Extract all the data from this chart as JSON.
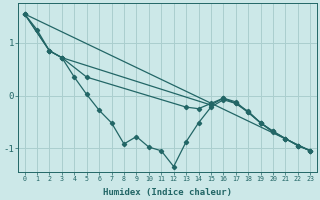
{
  "xlabel": "Humidex (Indice chaleur)",
  "bg_color": "#cce8e8",
  "line_color": "#226666",
  "grid_color": "#aacece",
  "xlim": [
    -0.5,
    23.5
  ],
  "ylim": [
    -1.45,
    1.75
  ],
  "yticks": [
    -1,
    0,
    1
  ],
  "xticks": [
    0,
    1,
    2,
    3,
    4,
    5,
    6,
    7,
    8,
    9,
    10,
    11,
    12,
    13,
    14,
    15,
    16,
    17,
    18,
    19,
    20,
    21,
    22,
    23
  ],
  "line_zigzag": [
    [
      0,
      1.55
    ],
    [
      1,
      1.25
    ],
    [
      2,
      0.85
    ],
    [
      3,
      0.72
    ],
    [
      4,
      0.35
    ],
    [
      5,
      0.02
    ],
    [
      6,
      -0.28
    ],
    [
      7,
      -0.52
    ],
    [
      8,
      -0.92
    ],
    [
      9,
      -0.78
    ],
    [
      10,
      -0.98
    ],
    [
      11,
      -1.05
    ],
    [
      12,
      -1.35
    ],
    [
      13,
      -0.88
    ],
    [
      14,
      -0.52
    ],
    [
      15,
      -0.22
    ],
    [
      16,
      -0.08
    ],
    [
      17,
      -0.15
    ],
    [
      18,
      -0.3
    ],
    [
      19,
      -0.52
    ],
    [
      20,
      -0.68
    ],
    [
      21,
      -0.82
    ],
    [
      22,
      -0.95
    ],
    [
      23,
      -1.05
    ]
  ],
  "line_mid1": [
    [
      0,
      1.55
    ],
    [
      2,
      0.85
    ],
    [
      3,
      0.72
    ],
    [
      5,
      0.35
    ],
    [
      13,
      -0.22
    ],
    [
      14,
      -0.25
    ],
    [
      15,
      -0.15
    ],
    [
      16,
      -0.05
    ],
    [
      17,
      -0.15
    ],
    [
      18,
      -0.32
    ],
    [
      19,
      -0.52
    ],
    [
      20,
      -0.7
    ],
    [
      21,
      -0.82
    ],
    [
      22,
      -0.95
    ],
    [
      23,
      -1.05
    ]
  ],
  "line_mid2": [
    [
      0,
      1.55
    ],
    [
      2,
      0.85
    ],
    [
      3,
      0.72
    ],
    [
      15,
      -0.18
    ],
    [
      16,
      -0.05
    ],
    [
      17,
      -0.12
    ],
    [
      18,
      -0.32
    ],
    [
      19,
      -0.52
    ],
    [
      20,
      -0.68
    ],
    [
      21,
      -0.82
    ],
    [
      22,
      -0.95
    ],
    [
      23,
      -1.05
    ]
  ],
  "line_straight": [
    [
      0,
      1.55
    ],
    [
      23,
      -1.05
    ]
  ]
}
